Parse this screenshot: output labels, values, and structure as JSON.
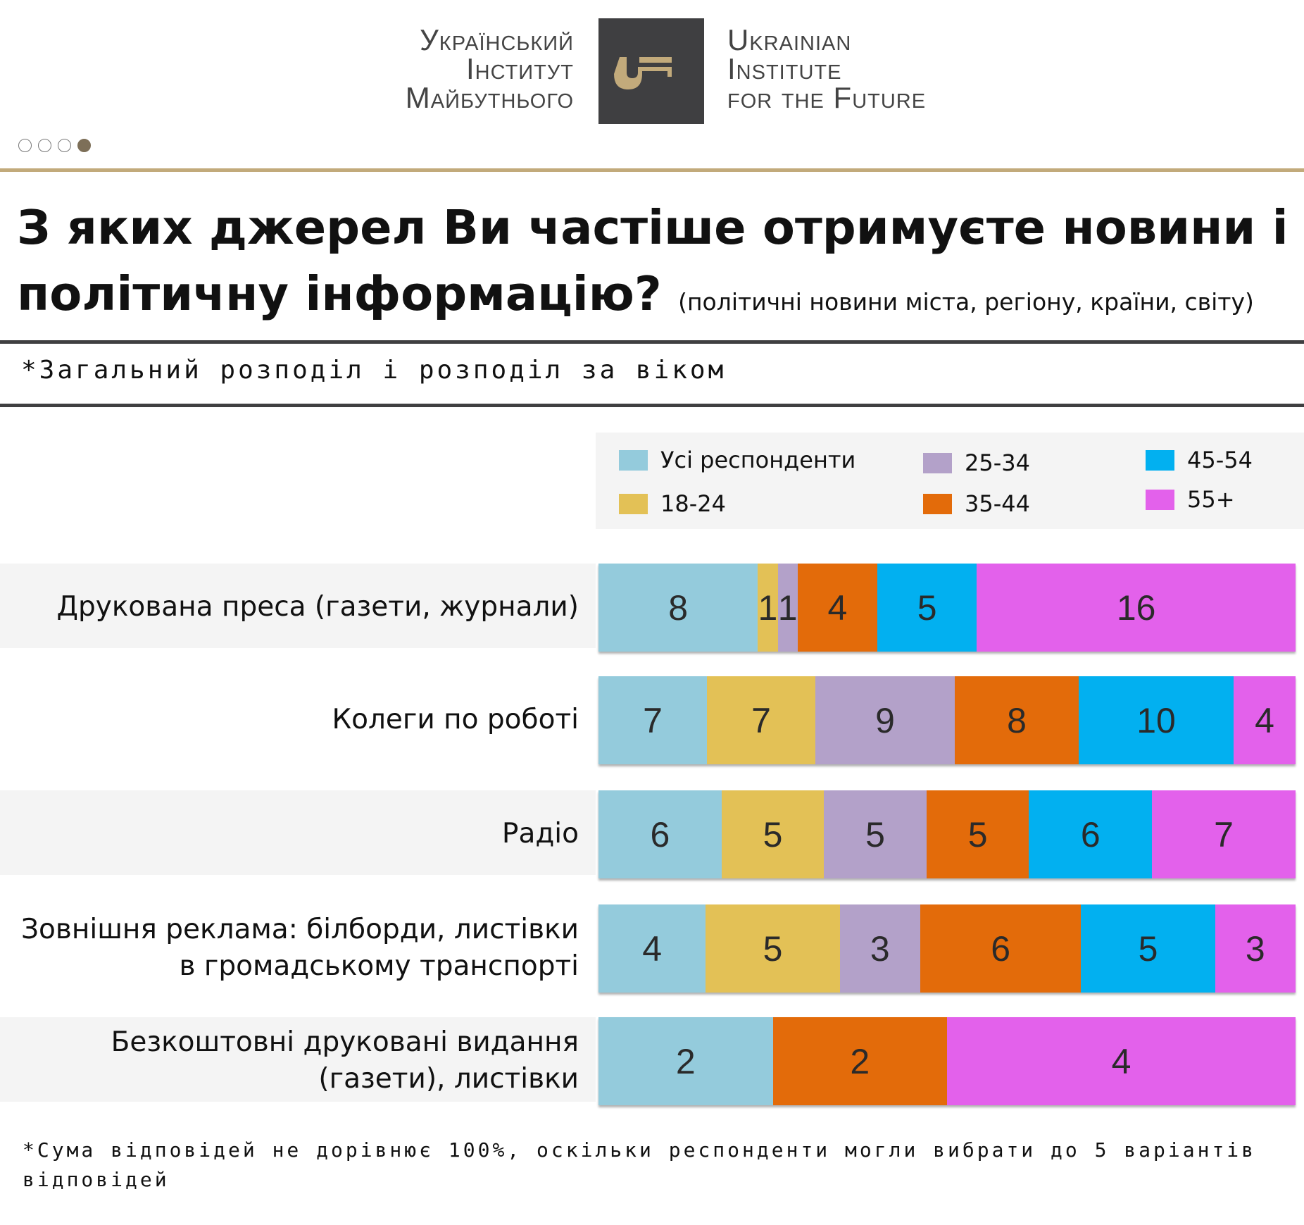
{
  "header": {
    "logo_ua": [
      "Український",
      "Інститут",
      "Майбутнього"
    ],
    "logo_en": [
      "Ukrainian",
      "Institute",
      "for the Future"
    ],
    "logo_icon": "key-icon",
    "pagination": {
      "total": 4,
      "active": 4
    }
  },
  "title": {
    "main": "З яких джерел Ви частіше отримуєте новини і політичну інформацію?",
    "note": "(політичні новини міста, регіону, країни, світу)"
  },
  "subtitle": "*Загальний розподіл і розподіл за віком",
  "footnote": "*Сума відповідей не дорівнює 100%, оскільки респонденти могли вибрати до 5 варіантів відповідей",
  "chart_data": {
    "type": "bar",
    "stacked": true,
    "orientation": "horizontal",
    "normalized_rows": true,
    "legend_position": "top-right",
    "colors": {
      "Усі респонденти": "#94cbdc",
      "18-24": "#e3c156",
      "25-34": "#b3a1c9",
      "35-44": "#e36b0a",
      "45-54": "#02b0f0",
      "55+": "#e361eb"
    },
    "categories": [
      "Друкована преса (газети, журнали)",
      "Колеги по роботі",
      "Радіо",
      "Зовнішня реклама: білборди, листівки в громадському транспорті",
      "Безкоштовні друковані видання (газети), листівки"
    ],
    "category_lines": [
      [
        "Друкована преса (газети, журнали)"
      ],
      [
        "Колеги по роботі"
      ],
      [
        "Радіо"
      ],
      [
        "Зовнішня реклама: білборди, листівки",
        "в громадському транспорті"
      ],
      [
        "Безкоштовні друковані видання",
        "(газети), листівки"
      ]
    ],
    "series": [
      {
        "name": "Усі респонденти",
        "values": [
          8,
          7,
          6,
          4,
          2
        ]
      },
      {
        "name": "18-24",
        "values": [
          1,
          7,
          5,
          5,
          null
        ]
      },
      {
        "name": "25-34",
        "values": [
          1,
          9,
          5,
          3,
          null
        ]
      },
      {
        "name": "35-44",
        "values": [
          4,
          8,
          5,
          6,
          2
        ]
      },
      {
        "name": "45-54",
        "values": [
          5,
          10,
          6,
          5,
          null
        ]
      },
      {
        "name": "55+",
        "values": [
          16,
          4,
          7,
          3,
          4
        ]
      }
    ]
  }
}
